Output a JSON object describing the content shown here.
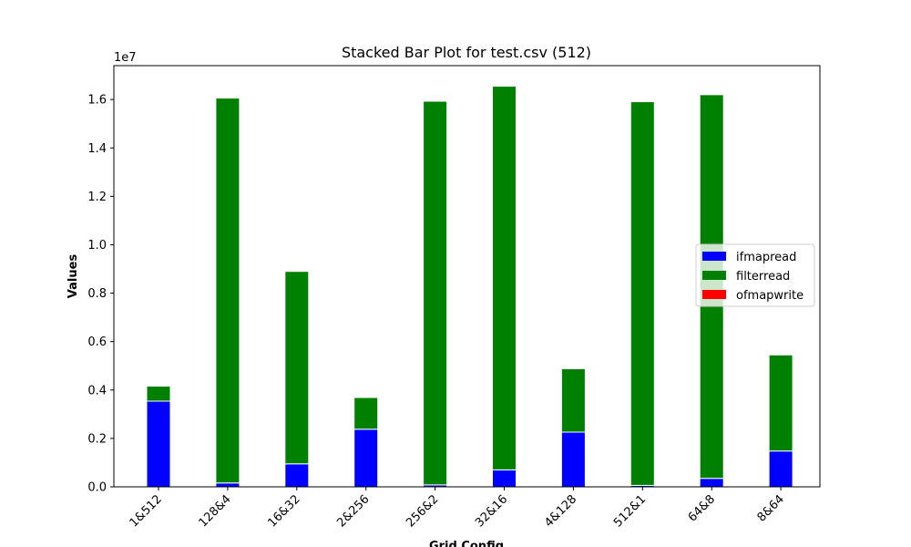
{
  "chart_data": {
    "type": "bar",
    "stacked": true,
    "title": "Stacked Bar Plot for test.csv (512)",
    "xlabel": "Grid Config",
    "ylabel": "Values",
    "scale_label": "1e7",
    "categories": [
      "1&512",
      "128&4",
      "16&32",
      "2&256",
      "256&2",
      "32&16",
      "4&128",
      "512&1",
      "64&8",
      "8&64"
    ],
    "series": [
      {
        "name": "ifmapread",
        "color": "#0000ff",
        "values": [
          3540000,
          160000,
          950000,
          2380000,
          80000,
          700000,
          2260000,
          60000,
          350000,
          1480000
        ]
      },
      {
        "name": "filterread",
        "color": "#008000",
        "values": [
          620000,
          15900000,
          7950000,
          1310000,
          15850000,
          15850000,
          2620000,
          15850000,
          15850000,
          3970000
        ]
      },
      {
        "name": "ofmapwrite",
        "color": "#ff0000",
        "values": [
          0,
          0,
          0,
          0,
          0,
          0,
          0,
          0,
          0,
          0
        ]
      }
    ],
    "yticks": [
      0,
      2000000,
      4000000,
      6000000,
      8000000,
      10000000,
      12000000,
      14000000,
      16000000
    ],
    "ytick_labels": [
      "0.0",
      "0.2",
      "0.4",
      "0.6",
      "0.8",
      "1.0",
      "1.2",
      "1.4",
      "1.6"
    ],
    "ylim": [
      0,
      17400000
    ],
    "grid": false,
    "legend_position": "center-right"
  }
}
